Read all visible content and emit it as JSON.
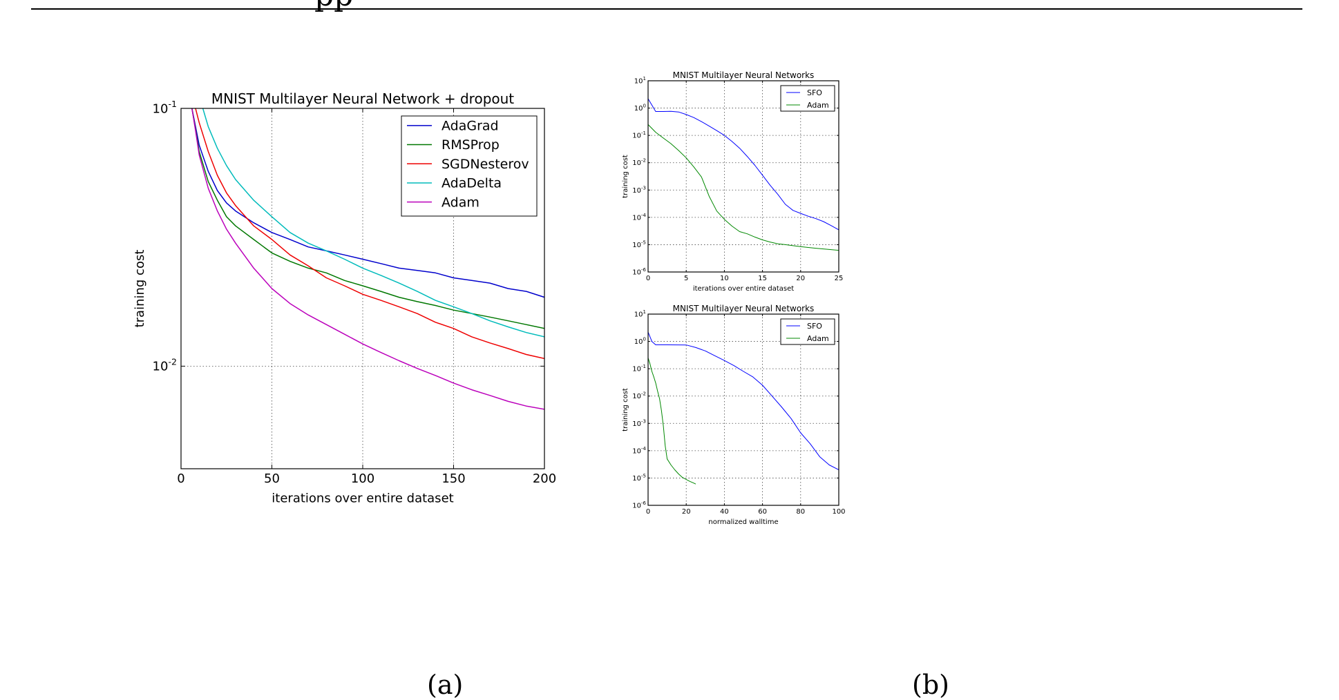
{
  "page": {
    "header_text_fragment": "pp"
  },
  "captions": {
    "a": "(a)",
    "b": "(b)"
  },
  "chart_data": [
    {
      "type": "line",
      "title": "MNIST Multilayer Neural Network + dropout",
      "xlabel": "iterations over entire dataset",
      "ylabel": "training cost",
      "yscale": "log",
      "xlim": [
        0,
        200
      ],
      "ylim": [
        0.004,
        0.1
      ],
      "xticks": [
        "0",
        "50",
        "100",
        "150",
        "200"
      ],
      "yticks": [
        "10^-1",
        "10^-2"
      ],
      "grid": "dotted at x=50,100,150 and y=10^-2",
      "legend": "top-right",
      "series": [
        {
          "name": "AdaGrad",
          "color": "#0000cc",
          "x": [
            6,
            8,
            10,
            15,
            20,
            25,
            30,
            40,
            50,
            60,
            70,
            80,
            90,
            100,
            110,
            120,
            130,
            140,
            150,
            160,
            170,
            180,
            190,
            200
          ],
          "y": [
            0.1,
            0.085,
            0.072,
            0.057,
            0.048,
            0.043,
            0.04,
            0.036,
            0.033,
            0.031,
            0.029,
            0.028,
            0.027,
            0.026,
            0.025,
            0.024,
            0.0235,
            0.023,
            0.022,
            0.0215,
            0.021,
            0.02,
            0.0195,
            0.0185
          ]
        },
        {
          "name": "RMSProp",
          "color": "#007700",
          "x": [
            6,
            8,
            10,
            15,
            20,
            25,
            30,
            40,
            50,
            60,
            70,
            80,
            90,
            100,
            110,
            120,
            130,
            140,
            150,
            160,
            170,
            180,
            190,
            200
          ],
          "y": [
            0.1,
            0.083,
            0.068,
            0.052,
            0.044,
            0.038,
            0.035,
            0.031,
            0.0275,
            0.0255,
            0.024,
            0.023,
            0.0215,
            0.0205,
            0.0195,
            0.0185,
            0.0178,
            0.0172,
            0.0165,
            0.016,
            0.0155,
            0.015,
            0.0145,
            0.014
          ]
        },
        {
          "name": "SGDNesterov",
          "color": "#ee0000",
          "x": [
            8,
            10,
            15,
            20,
            25,
            30,
            40,
            50,
            60,
            70,
            80,
            90,
            100,
            110,
            120,
            130,
            140,
            150,
            160,
            170,
            180,
            190,
            200
          ],
          "y": [
            0.1,
            0.088,
            0.068,
            0.055,
            0.047,
            0.042,
            0.035,
            0.031,
            0.027,
            0.0245,
            0.022,
            0.0205,
            0.019,
            0.018,
            0.017,
            0.016,
            0.0148,
            0.014,
            0.013,
            0.0123,
            0.0117,
            0.0111,
            0.0107
          ]
        },
        {
          "name": "AdaDelta",
          "color": "#00bbbb",
          "x": [
            12,
            15,
            20,
            25,
            30,
            40,
            50,
            60,
            70,
            80,
            90,
            100,
            110,
            120,
            130,
            140,
            150,
            160,
            170,
            180,
            190,
            200
          ],
          "y": [
            0.1,
            0.085,
            0.07,
            0.06,
            0.053,
            0.044,
            0.038,
            0.033,
            0.03,
            0.028,
            0.026,
            0.024,
            0.0225,
            0.021,
            0.0195,
            0.018,
            0.017,
            0.016,
            0.015,
            0.0142,
            0.0135,
            0.013
          ]
        },
        {
          "name": "Adam",
          "color": "#bb00bb",
          "x": [
            6,
            8,
            10,
            15,
            20,
            25,
            30,
            40,
            50,
            60,
            70,
            80,
            90,
            100,
            110,
            120,
            130,
            140,
            150,
            160,
            170,
            180,
            190,
            200
          ],
          "y": [
            0.1,
            0.082,
            0.066,
            0.049,
            0.04,
            0.034,
            0.03,
            0.024,
            0.02,
            0.0175,
            0.0158,
            0.0145,
            0.0133,
            0.0122,
            0.0113,
            0.0105,
            0.0098,
            0.0092,
            0.0086,
            0.0081,
            0.0077,
            0.0073,
            0.007,
            0.0068
          ]
        }
      ]
    },
    {
      "type": "line",
      "title": "MNIST Multilayer Neural Networks",
      "xlabel": "iterations over entire dataset",
      "ylabel": "training cost",
      "yscale": "log",
      "xlim": [
        0,
        25
      ],
      "ylim": [
        1e-06,
        10
      ],
      "xticks": [
        "0",
        "5",
        "10",
        "15",
        "20",
        "25"
      ],
      "yticks": [
        "10^1",
        "10^0",
        "10^-1",
        "10^-2",
        "10^-3",
        "10^-4",
        "10^-5",
        "10^-6"
      ],
      "grid": "dotted",
      "legend": "top-right",
      "series": [
        {
          "name": "SFO",
          "color": "#0000ff",
          "x": [
            0,
            1,
            2,
            3,
            4,
            5,
            6,
            7,
            8,
            9,
            10,
            11,
            12,
            13,
            14,
            15,
            16,
            17,
            18,
            19,
            20,
            21,
            22,
            23,
            24,
            25
          ],
          "y": [
            2.2,
            0.75,
            0.75,
            0.76,
            0.72,
            0.58,
            0.45,
            0.32,
            0.22,
            0.15,
            0.1,
            0.06,
            0.034,
            0.017,
            0.008,
            0.0035,
            0.0015,
            0.0007,
            0.0003,
            0.00018,
            0.00014,
            0.00011,
            9e-05,
            7e-05,
            5e-05,
            3.5e-05
          ]
        },
        {
          "name": "Adam",
          "color": "#008800",
          "x": [
            0,
            1,
            2,
            3,
            4,
            5,
            6,
            7,
            8,
            9,
            10,
            11,
            12,
            13,
            14,
            15,
            16,
            17,
            18,
            19,
            20,
            21,
            22,
            23,
            24,
            25
          ],
          "y": [
            0.25,
            0.13,
            0.08,
            0.05,
            0.028,
            0.015,
            0.007,
            0.003,
            0.0006,
            0.00017,
            8.5e-05,
            4.8e-05,
            3e-05,
            2.5e-05,
            1.9e-05,
            1.5e-05,
            1.25e-05,
            1.08e-05,
            1e-05,
            9.2e-06,
            8.5e-06,
            7.9e-06,
            7.4e-06,
            7e-06,
            6.6e-06,
            6.2e-06
          ]
        }
      ]
    },
    {
      "type": "line",
      "title": "MNIST Multilayer Neural Networks",
      "xlabel": "normalized walltime",
      "ylabel": "training cost",
      "yscale": "log",
      "xlim": [
        0,
        100
      ],
      "ylim": [
        1e-06,
        10
      ],
      "xticks": [
        "0",
        "20",
        "40",
        "60",
        "80",
        "100"
      ],
      "yticks": [
        "10^1",
        "10^0",
        "10^-1",
        "10^-2",
        "10^-3",
        "10^-4",
        "10^-5",
        "10^-6"
      ],
      "grid": "dotted",
      "legend": "top-right",
      "series": [
        {
          "name": "SFO",
          "color": "#0000ff",
          "x": [
            0,
            2,
            4,
            10,
            20,
            25,
            30,
            35,
            40,
            45,
            50,
            55,
            60,
            65,
            70,
            75,
            80,
            85,
            90,
            95,
            100
          ],
          "y": [
            2.2,
            1.0,
            0.75,
            0.75,
            0.74,
            0.6,
            0.45,
            0.3,
            0.2,
            0.13,
            0.08,
            0.05,
            0.025,
            0.01,
            0.004,
            0.0015,
            0.00045,
            0.00018,
            6e-05,
            3e-05,
            2e-05
          ]
        },
        {
          "name": "Adam",
          "color": "#008800",
          "x": [
            0,
            1,
            2,
            3,
            4,
            5,
            6,
            7,
            8,
            9,
            10,
            12,
            14,
            16,
            18,
            20,
            22,
            24,
            25
          ],
          "y": [
            0.25,
            0.15,
            0.08,
            0.05,
            0.03,
            0.015,
            0.008,
            0.003,
            0.0008,
            0.00015,
            5e-05,
            3e-05,
            2e-05,
            1.4e-05,
            1.05e-05,
            8.8e-06,
            7.5e-06,
            6.5e-06,
            6e-06
          ]
        }
      ]
    }
  ]
}
